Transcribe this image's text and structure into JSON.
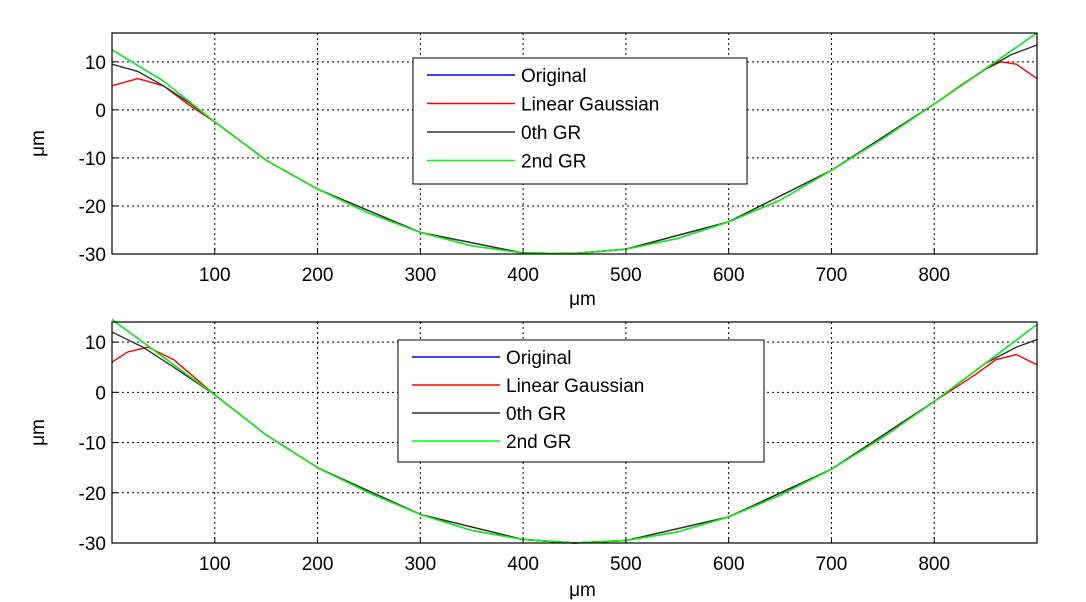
{
  "chart_data": [
    {
      "type": "line",
      "xlabel": "μm",
      "ylabel": "μm",
      "xlim": [
        0,
        900
      ],
      "ylim": [
        -30,
        16
      ],
      "xticks": [
        100,
        200,
        300,
        400,
        500,
        600,
        700,
        800
      ],
      "yticks": [
        -30,
        -20,
        -10,
        0,
        10
      ],
      "grid": true,
      "legend_position": "top-center",
      "series": [
        {
          "name": "Original",
          "color": "#0000ff",
          "x": [
            0,
            50,
            100,
            150,
            200,
            250,
            300,
            350,
            400,
            450,
            500,
            550,
            600,
            650,
            700,
            750,
            800,
            850,
            900
          ],
          "y": [
            12.5,
            6.0,
            -2.5,
            -10.5,
            -16.5,
            -21.5,
            -25.5,
            -28.3,
            -29.8,
            -29.9,
            -29.0,
            -26.8,
            -23.3,
            -18.8,
            -12.6,
            -6.0,
            1.2,
            8.6,
            16.0
          ]
        },
        {
          "name": "Linear Gaussian",
          "color": "#ff0000",
          "x": [
            0,
            25,
            50,
            75,
            100,
            150,
            200,
            300,
            400,
            450,
            500,
            600,
            700,
            800,
            825,
            850,
            865,
            880,
            900
          ],
          "y": [
            5.0,
            6.5,
            5.0,
            1.0,
            -2.5,
            -10.5,
            -16.5,
            -25.5,
            -29.8,
            -29.9,
            -29.0,
            -23.3,
            -12.6,
            1.2,
            5.0,
            8.5,
            10.0,
            9.5,
            6.5
          ]
        },
        {
          "name": "0th GR",
          "color": "#303030",
          "x": [
            0,
            25,
            50,
            75,
            100,
            150,
            200,
            300,
            400,
            450,
            500,
            600,
            700,
            800,
            850,
            875,
            900
          ],
          "y": [
            9.5,
            8.0,
            5.0,
            1.5,
            -2.5,
            -10.5,
            -16.5,
            -25.5,
            -29.8,
            -29.9,
            -29.0,
            -23.3,
            -12.6,
            1.2,
            8.5,
            11.5,
            13.5
          ]
        },
        {
          "name": "2nd GR",
          "color": "#00ff00",
          "x": [
            0,
            50,
            100,
            150,
            200,
            250,
            300,
            350,
            400,
            450,
            500,
            550,
            600,
            650,
            700,
            750,
            800,
            850,
            900
          ],
          "y": [
            12.5,
            6.0,
            -2.5,
            -10.5,
            -16.5,
            -21.5,
            -25.5,
            -28.3,
            -29.8,
            -29.9,
            -29.0,
            -26.8,
            -23.3,
            -18.8,
            -12.6,
            -6.0,
            1.2,
            8.6,
            16.0
          ]
        }
      ]
    },
    {
      "type": "line",
      "xlabel": "μm",
      "ylabel": "μm",
      "xlim": [
        0,
        900
      ],
      "ylim": [
        -30,
        14
      ],
      "xticks": [
        100,
        200,
        300,
        400,
        500,
        600,
        700,
        800
      ],
      "yticks": [
        -30,
        -20,
        -10,
        0,
        10
      ],
      "grid": true,
      "legend_position": "top-center",
      "series": [
        {
          "name": "Original",
          "color": "#0000ff",
          "x": [
            0,
            50,
            100,
            150,
            200,
            250,
            300,
            350,
            400,
            450,
            500,
            550,
            600,
            650,
            700,
            750,
            800,
            850,
            900
          ],
          "y": [
            14.5,
            7.0,
            -0.5,
            -8.5,
            -15.0,
            -20.0,
            -24.3,
            -27.5,
            -29.3,
            -30.0,
            -29.5,
            -27.8,
            -24.8,
            -20.5,
            -15.3,
            -9.0,
            -1.8,
            5.8,
            13.5
          ]
        },
        {
          "name": "Linear Gaussian",
          "color": "#ff0000",
          "x": [
            0,
            15,
            35,
            60,
            100,
            150,
            200,
            300,
            400,
            450,
            500,
            600,
            700,
            800,
            840,
            860,
            880,
            900
          ],
          "y": [
            6.0,
            8.0,
            9.0,
            6.5,
            -0.5,
            -8.5,
            -15.0,
            -24.3,
            -29.3,
            -30.0,
            -29.5,
            -24.8,
            -15.3,
            -1.8,
            3.5,
            6.5,
            7.5,
            5.5
          ]
        },
        {
          "name": "0th GR",
          "color": "#303030",
          "x": [
            0,
            30,
            60,
            100,
            150,
            200,
            300,
            400,
            450,
            500,
            600,
            700,
            800,
            850,
            880,
            900
          ],
          "y": [
            12.0,
            9.0,
            5.0,
            -0.5,
            -8.5,
            -15.0,
            -24.3,
            -29.3,
            -30.0,
            -29.5,
            -24.8,
            -15.3,
            -1.8,
            5.8,
            9.0,
            10.5
          ]
        },
        {
          "name": "2nd GR",
          "color": "#00ff00",
          "x": [
            0,
            50,
            100,
            150,
            200,
            250,
            300,
            350,
            400,
            450,
            500,
            550,
            600,
            650,
            700,
            750,
            800,
            850,
            900
          ],
          "y": [
            14.5,
            7.0,
            -0.5,
            -8.5,
            -15.0,
            -20.0,
            -24.3,
            -27.5,
            -29.3,
            -30.0,
            -29.5,
            -27.8,
            -24.8,
            -20.5,
            -15.3,
            -9.0,
            -1.8,
            5.8,
            13.5
          ]
        }
      ]
    }
  ]
}
